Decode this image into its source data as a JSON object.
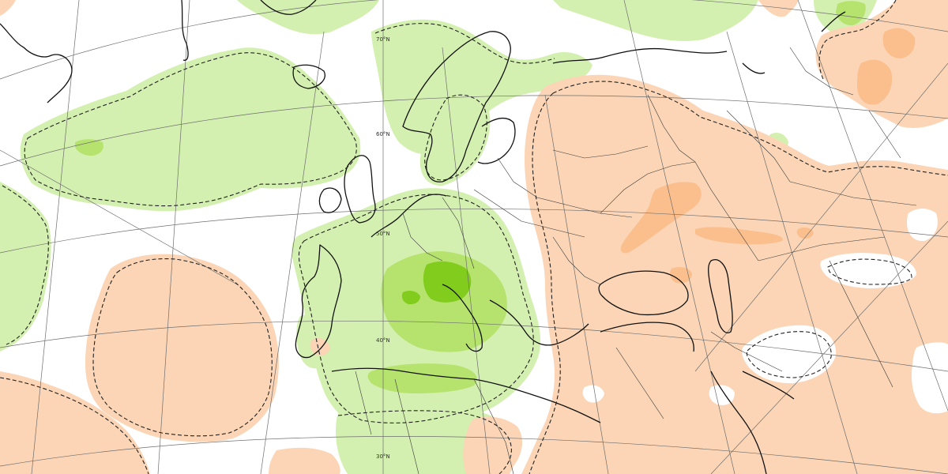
{
  "map": {
    "colors": {
      "background": "#ffffff",
      "positive_light": "#d4f0b0",
      "positive_medium": "#b6e36e",
      "positive_strong": "#82cc1e",
      "negative_light": "#fbd5b5",
      "negative_medium": "#fbbf8e",
      "grid": "#6e6e6e",
      "coastline": "#111111",
      "borders": "#3a3a3a",
      "contour": "#222222"
    },
    "latitude_labels": [
      {
        "id": "lat-70",
        "text": "70°N"
      },
      {
        "id": "lat-60",
        "text": "60°N"
      },
      {
        "id": "lat-50",
        "text": "50°N"
      },
      {
        "id": "lat-40",
        "text": "40°N"
      },
      {
        "id": "lat-30",
        "text": "30°N"
      }
    ]
  }
}
